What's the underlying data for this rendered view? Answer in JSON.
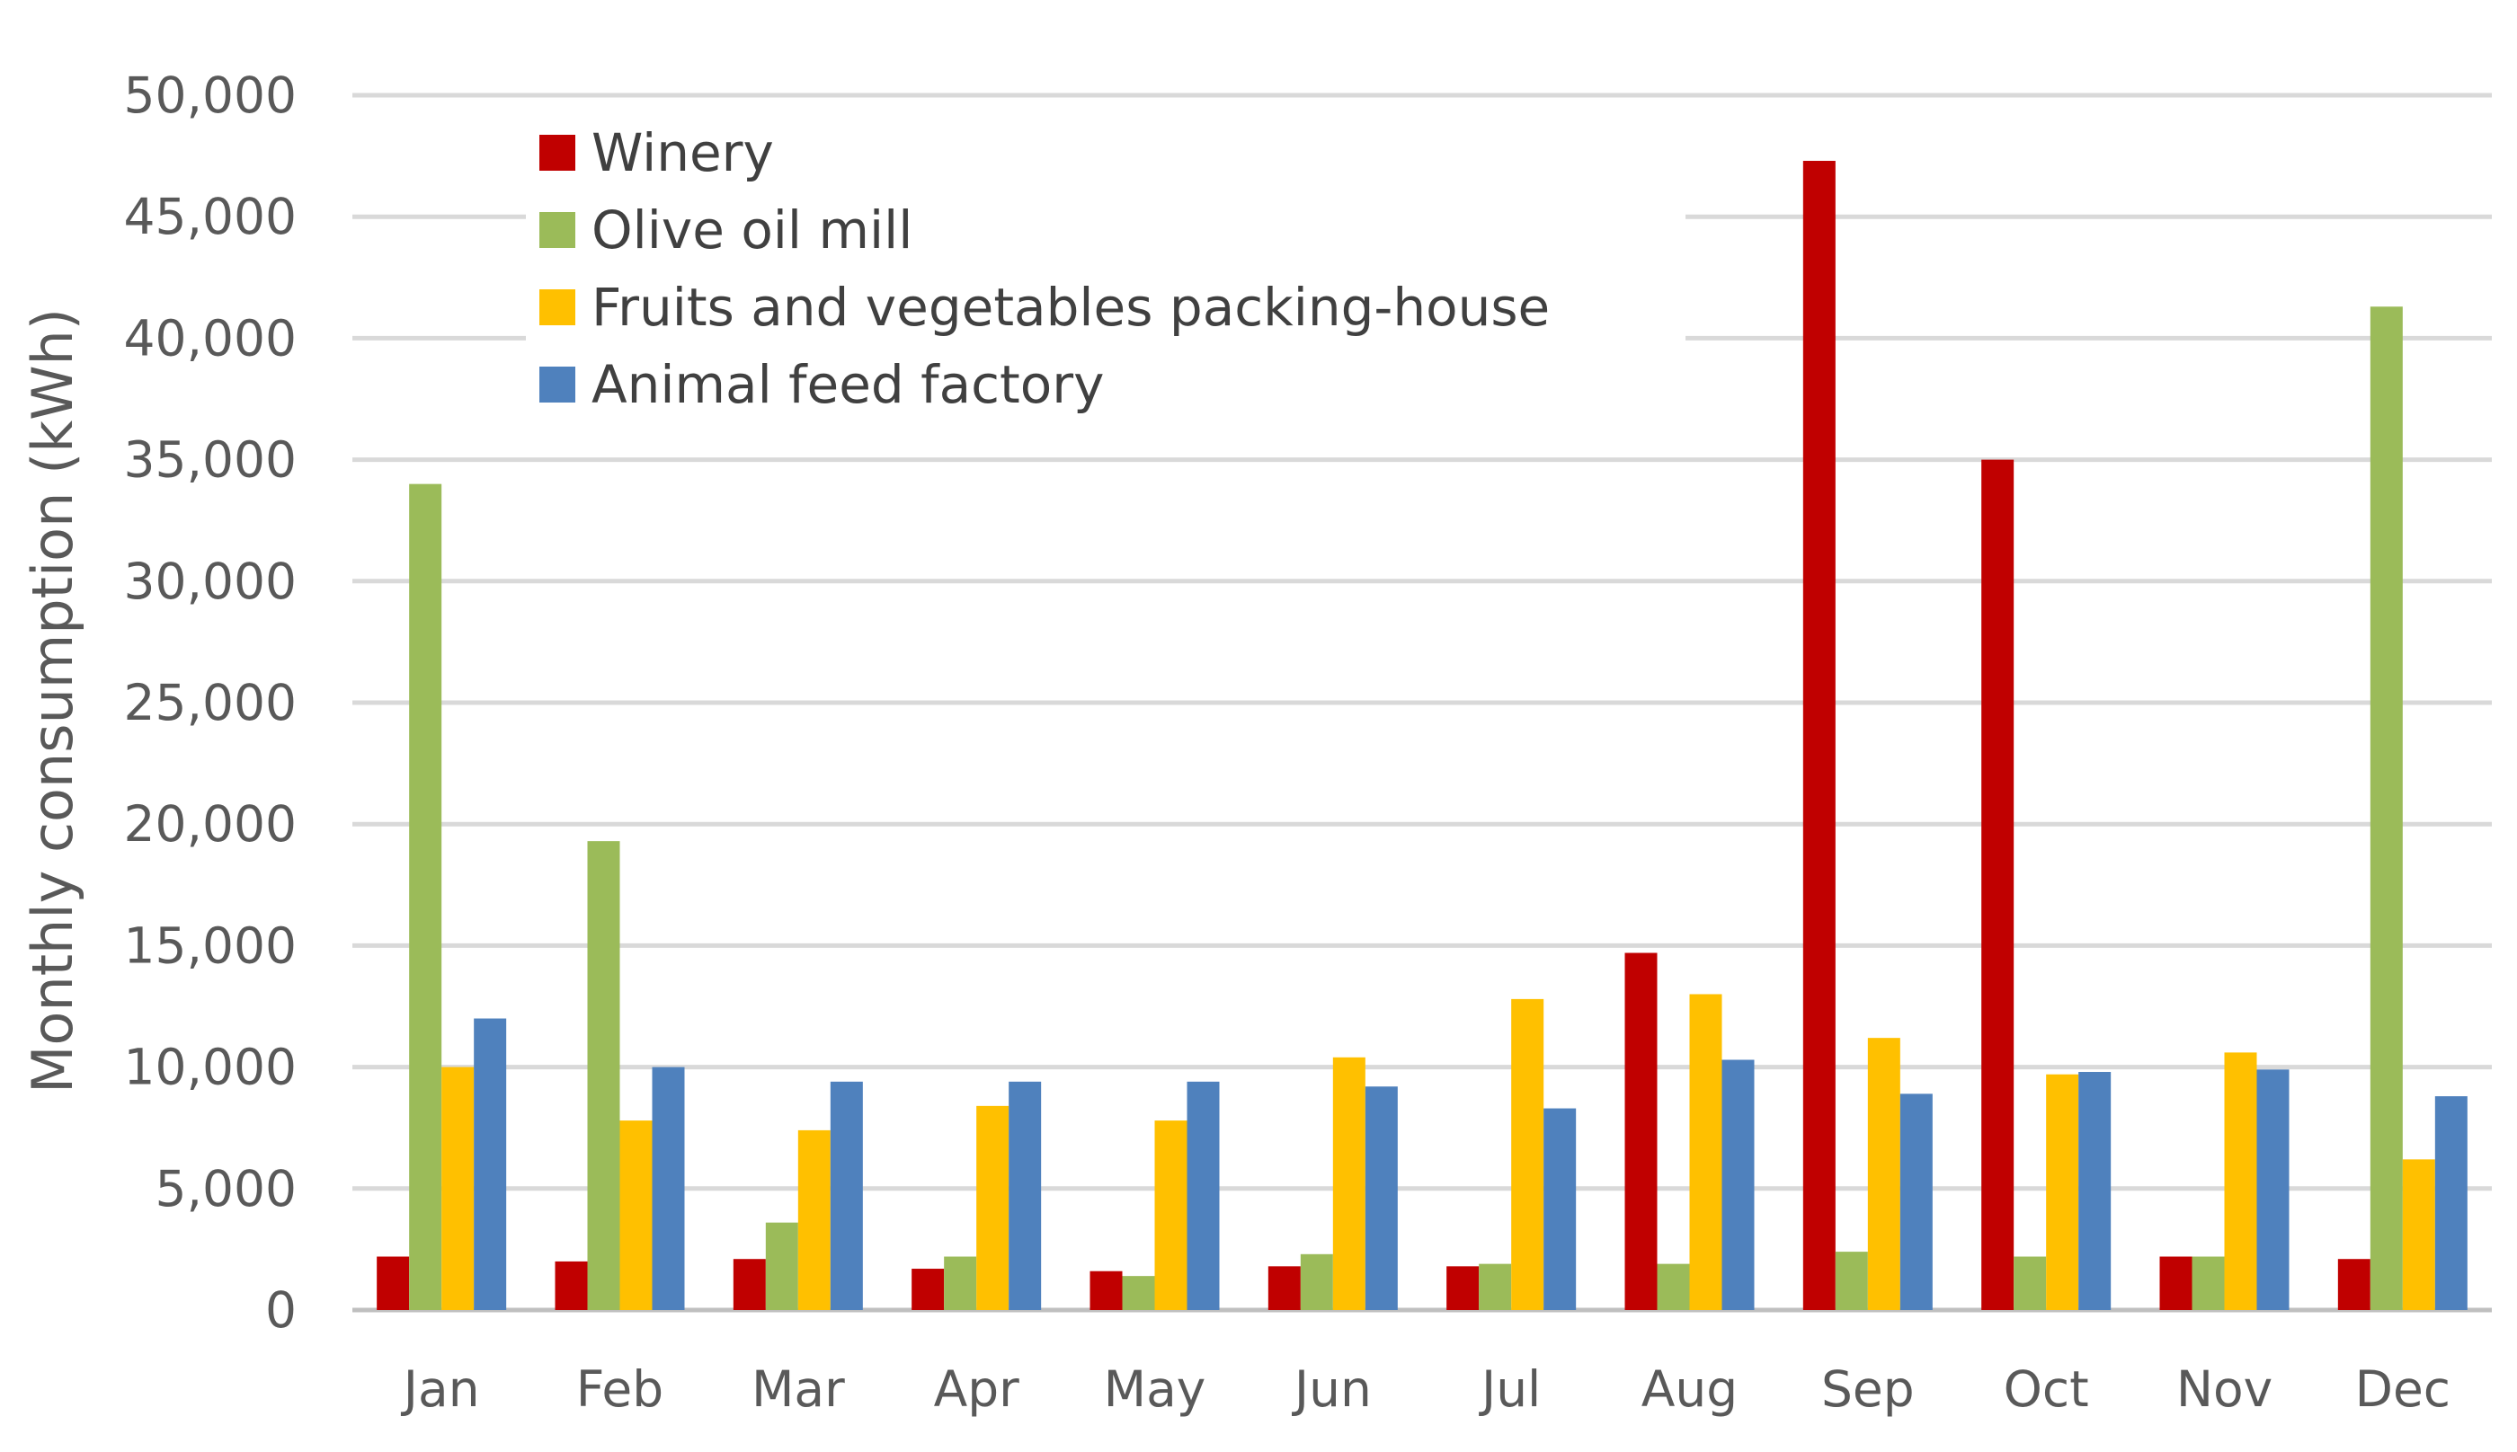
{
  "chart_data": {
    "type": "bar",
    "title": "",
    "xlabel": "",
    "ylabel": "Monthly  consumption (kWh)",
    "ylim": [
      0,
      50000
    ],
    "yticks": [
      0,
      5000,
      10000,
      15000,
      20000,
      25000,
      30000,
      35000,
      40000,
      45000,
      50000
    ],
    "ytick_labels": [
      "0",
      "5,000",
      "10,000",
      "15,000",
      "20,000",
      "25,000",
      "30,000",
      "35,000",
      "40,000",
      "45,000",
      "50,000"
    ],
    "grid": true,
    "legend_position": "top-left",
    "categories": [
      "Jan",
      "Feb",
      "Mar",
      "Apr",
      "May",
      "Jun",
      "Jul",
      "Aug",
      "Sep",
      "Oct",
      "Nov",
      "Dec"
    ],
    "series": [
      {
        "name": "Winery",
        "color": "#c00000",
        "values": [
          2200,
          2000,
          2100,
          1700,
          1600,
          1800,
          1800,
          14700,
          47300,
          35000,
          2200,
          2100
        ]
      },
      {
        "name": "Olive oil mill",
        "color": "#9bbb59",
        "values": [
          34000,
          19300,
          3600,
          2200,
          1400,
          2300,
          1900,
          1900,
          2400,
          2200,
          2200,
          41300
        ]
      },
      {
        "name": "Fruits and vegetables packing-house",
        "color": "#ffc000",
        "values": [
          10000,
          7800,
          7400,
          8400,
          7800,
          10400,
          12800,
          13000,
          11200,
          9700,
          10600,
          6200
        ]
      },
      {
        "name": "Animal feed factory",
        "color": "#4f81bd",
        "values": [
          12000,
          10000,
          9400,
          9400,
          9400,
          9200,
          8300,
          10300,
          8900,
          9800,
          9900,
          8800
        ]
      }
    ]
  }
}
